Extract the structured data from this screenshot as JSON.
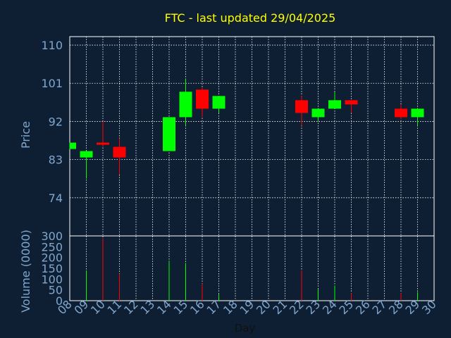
{
  "title": "FTC - last updated 29/04/2025",
  "colors": {
    "background": "#0f1f33",
    "title": "#ffff00",
    "axis_text": "#7fa7cf",
    "xlabel": "#111111",
    "up": "#00ff00",
    "down": "#ff0000",
    "grid": "#ffffff",
    "frame": "#ffffff"
  },
  "chart_data": [
    {
      "type": "candlestick",
      "ylabel": "Price",
      "ylim": [
        65,
        112
      ],
      "yticks": [
        110,
        101,
        92,
        83,
        74
      ],
      "grid": true,
      "candles": [
        {
          "day": "08",
          "open": 85.5,
          "high": 87.0,
          "low": 85.5,
          "close": 87.0
        },
        {
          "day": "09",
          "open": 83.5,
          "high": 85.0,
          "low": 78.5,
          "close": 85.0
        },
        {
          "day": "10",
          "open": 87.0,
          "high": 92.0,
          "low": 86.0,
          "close": 86.5
        },
        {
          "day": "11",
          "open": 86.0,
          "high": 88.0,
          "low": 79.5,
          "close": 83.5
        },
        {
          "day": "14",
          "open": 85.0,
          "high": 93.0,
          "low": 85.0,
          "close": 93.0
        },
        {
          "day": "15",
          "open": 93.0,
          "high": 102.0,
          "low": 91.0,
          "close": 99.0
        },
        {
          "day": "16",
          "open": 99.5,
          "high": 100.0,
          "low": 93.0,
          "close": 95.0
        },
        {
          "day": "17",
          "open": 95.0,
          "high": 98.0,
          "low": 94.0,
          "close": 98.0
        },
        {
          "day": "22",
          "open": 97.0,
          "high": 98.0,
          "low": 91.0,
          "close": 94.0
        },
        {
          "day": "23",
          "open": 93.0,
          "high": 95.0,
          "low": 92.0,
          "close": 95.0
        },
        {
          "day": "24",
          "open": 95.0,
          "high": 99.0,
          "low": 95.0,
          "close": 97.0
        },
        {
          "day": "25",
          "open": 97.0,
          "high": 97.0,
          "low": 94.0,
          "close": 96.0
        },
        {
          "day": "28",
          "open": 95.0,
          "high": 96.0,
          "low": 92.5,
          "close": 93.0
        },
        {
          "day": "29",
          "open": 93.0,
          "high": 95.0,
          "low": 91.0,
          "close": 95.0
        }
      ]
    },
    {
      "type": "bar",
      "ylabel": "Volume (0000)",
      "xlabel": "Day",
      "ylim": [
        0,
        300
      ],
      "yticks": [
        300,
        250,
        200,
        150,
        100,
        50,
        0
      ],
      "categories": [
        "08",
        "09",
        "10",
        "11",
        "12",
        "13",
        "14",
        "15",
        "16",
        "17",
        "18",
        "19",
        "20",
        "21",
        "22",
        "23",
        "24",
        "25",
        "26",
        "27",
        "28",
        "29",
        "30"
      ],
      "volumes": [
        {
          "day": "09",
          "value": 140,
          "dir": "up"
        },
        {
          "day": "10",
          "value": 290,
          "dir": "down"
        },
        {
          "day": "11",
          "value": 125,
          "dir": "down"
        },
        {
          "day": "14",
          "value": 185,
          "dir": "up"
        },
        {
          "day": "15",
          "value": 175,
          "dir": "up"
        },
        {
          "day": "16",
          "value": 80,
          "dir": "down"
        },
        {
          "day": "17",
          "value": 30,
          "dir": "up"
        },
        {
          "day": "22",
          "value": 140,
          "dir": "down"
        },
        {
          "day": "23",
          "value": 55,
          "dir": "up"
        },
        {
          "day": "24",
          "value": 70,
          "dir": "up"
        },
        {
          "day": "25",
          "value": 35,
          "dir": "down"
        },
        {
          "day": "28",
          "value": 35,
          "dir": "down"
        },
        {
          "day": "29",
          "value": 40,
          "dir": "up"
        }
      ]
    }
  ]
}
